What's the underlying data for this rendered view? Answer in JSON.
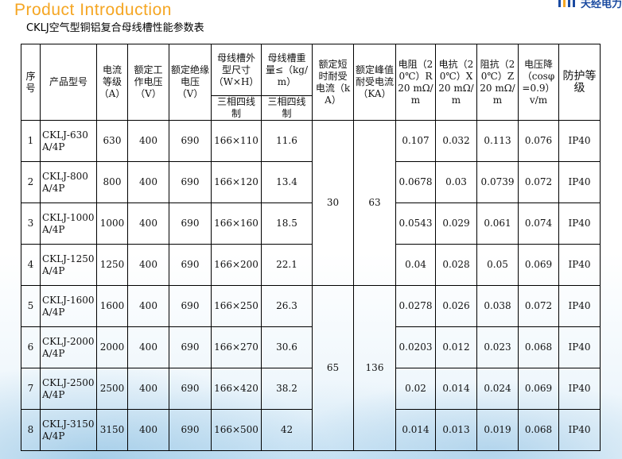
{
  "header": {
    "title": "Product Introduction",
    "subtitle": "CKLJ空气型铜铝复合母线槽性能参数表",
    "logo_text": "天经电力"
  },
  "table": {
    "headers": {
      "no": "序号",
      "model": "产品型号",
      "current": "电流等级（A）",
      "work_v": "额定工作电压（V）",
      "insul_v": "额定绝缘电压（V）",
      "size": "母线槽外型尺寸（W×H）",
      "weight": "母线槽重量≤（kg/m）",
      "short": "额定短时耐受电流（kA）",
      "peak": "额定峰值耐受电流（KA）",
      "r": "电阻（20℃）R20 mΩ/m",
      "x": "电抗（20℃）X20 mΩ/m",
      "z": "阻抗（20℃）Z20 mΩ/m",
      "drop": "电压降（cosφ=0.9）v/m",
      "ip": "防护等级",
      "sub1": "三相四线制",
      "sub2": "三相四线制"
    },
    "group_values": [
      {
        "short": "30",
        "peak": "63"
      },
      {
        "short": "65",
        "peak": "136"
      }
    ],
    "rows": [
      {
        "no": "1",
        "model": "CKLJ-630A/4P",
        "current": "630",
        "work_v": "400",
        "insul_v": "690",
        "size": "166×110",
        "weight": "11.6",
        "r": "0.107",
        "x": "0.032",
        "z": "0.113",
        "drop": "0.076",
        "ip": "IP40"
      },
      {
        "no": "2",
        "model": "CKLJ-800A/4P",
        "current": "800",
        "work_v": "400",
        "insul_v": "690",
        "size": "166×120",
        "weight": "13.4",
        "r": "0.0678",
        "x": "0.03",
        "z": "0.0739",
        "drop": "0.072",
        "ip": "IP40"
      },
      {
        "no": "3",
        "model": "CKLJ-1000A/4P",
        "current": "1000",
        "work_v": "400",
        "insul_v": "690",
        "size": "166×160",
        "weight": "18.5",
        "r": "0.0543",
        "x": "0.029",
        "z": "0.061",
        "drop": "0.074",
        "ip": "IP40"
      },
      {
        "no": "4",
        "model": "CKLJ-1250A/4P",
        "current": "1250",
        "work_v": "400",
        "insul_v": "690",
        "size": "166×200",
        "weight": "22.1",
        "r": "0.04",
        "x": "0.028",
        "z": "0.05",
        "drop": "0.069",
        "ip": "IP40"
      },
      {
        "no": "5",
        "model": "CKLJ-1600A/4P",
        "current": "1600",
        "work_v": "400",
        "insul_v": "690",
        "size": "166×250",
        "weight": "26.3",
        "r": "0.0278",
        "x": "0.026",
        "z": "0.038",
        "drop": "0.072",
        "ip": "IP40"
      },
      {
        "no": "6",
        "model": "CKLJ-2000A/4P",
        "current": "2000",
        "work_v": "400",
        "insul_v": "690",
        "size": "166×270",
        "weight": "30.6",
        "r": "0.0203",
        "x": "0.012",
        "z": "0.023",
        "drop": "0.068",
        "ip": "IP40"
      },
      {
        "no": "7",
        "model": "CKLJ-2500A/4P",
        "current": "2500",
        "work_v": "400",
        "insul_v": "690",
        "size": "166×420",
        "weight": "38.2",
        "r": "0.02",
        "x": "0.014",
        "z": "0.024",
        "drop": "0.069",
        "ip": "IP40"
      },
      {
        "no": "8",
        "model": "CKLJ-3150A/4P",
        "current": "3150",
        "work_v": "400",
        "insul_v": "690",
        "size": "166×500",
        "weight": "42",
        "r": "0.014",
        "x": "0.013",
        "z": "0.019",
        "drop": "0.068",
        "ip": "IP40"
      }
    ]
  }
}
